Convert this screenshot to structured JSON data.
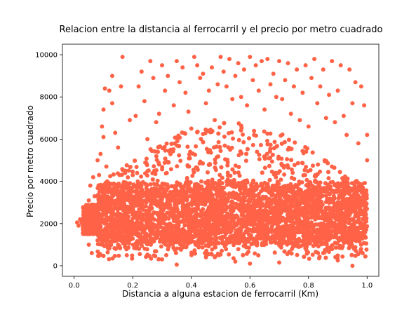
{
  "chart_data": {
    "type": "scatter",
    "title": "Relacion entre la distancia al ferrocarril y el precio por metro cuadrado",
    "xlabel": "Distancia a alguna estacion de ferrocarril (Km)",
    "ylabel": "Precio por metro cuadrado",
    "xlim": [
      -0.04,
      1.04
    ],
    "ylim": [
      -500,
      10500
    ],
    "xticks": [
      "0.0",
      "0.2",
      "0.4",
      "0.6",
      "0.8",
      "1.0"
    ],
    "xtick_values": [
      0.0,
      0.2,
      0.4,
      0.6,
      0.8,
      1.0
    ],
    "yticks": [
      "0",
      "2000",
      "4000",
      "6000",
      "8000",
      "10000"
    ],
    "ytick_values": [
      0,
      2000,
      4000,
      6000,
      8000,
      10000
    ],
    "grid": false,
    "legend": "none",
    "marker_color": "#ff6347",
    "series": [
      {
        "points": [
          [
            0.01,
            2050
          ],
          [
            0.015,
            1900
          ],
          [
            0.02,
            2200
          ],
          [
            0.025,
            2050
          ],
          [
            0.03,
            1800
          ],
          [
            0.035,
            2400
          ],
          [
            0.04,
            2600
          ],
          [
            0.045,
            1500
          ],
          [
            0.05,
            3100
          ],
          [
            0.05,
            1000
          ],
          [
            0.055,
            3800
          ],
          [
            0.06,
            2900
          ],
          [
            0.06,
            600
          ],
          [
            0.065,
            4200
          ],
          [
            0.07,
            3300
          ],
          [
            0.075,
            2100
          ],
          [
            0.08,
            5000
          ],
          [
            0.08,
            1200
          ],
          [
            0.085,
            4300
          ],
          [
            0.09,
            5300
          ],
          [
            0.095,
            6600
          ],
          [
            0.1,
            7400
          ],
          [
            0.1,
            6100
          ],
          [
            0.105,
            8400
          ],
          [
            0.11,
            4700
          ],
          [
            0.12,
            8300
          ],
          [
            0.13,
            7700
          ],
          [
            0.13,
            9000
          ],
          [
            0.14,
            6300
          ],
          [
            0.15,
            5600
          ],
          [
            0.16,
            8500
          ],
          [
            0.165,
            9900
          ],
          [
            0.17,
            3200
          ],
          [
            0.18,
            3900
          ],
          [
            0.19,
            6900
          ],
          [
            0.2,
            4300
          ],
          [
            0.21,
            7100
          ],
          [
            0.22,
            8500
          ],
          [
            0.23,
            9200
          ],
          [
            0.24,
            7800
          ],
          [
            0.25,
            6000
          ],
          [
            0.26,
            9700
          ],
          [
            0.27,
            8900
          ],
          [
            0.28,
            6800
          ],
          [
            0.29,
            7200
          ],
          [
            0.3,
            9500
          ],
          [
            0.31,
            8300
          ],
          [
            0.32,
            9000
          ],
          [
            0.33,
            5500
          ],
          [
            0.34,
            7600
          ],
          [
            0.35,
            9700
          ],
          [
            0.36,
            8700
          ],
          [
            0.37,
            9400
          ],
          [
            0.38,
            8200
          ],
          [
            0.39,
            7300
          ],
          [
            0.4,
            6500
          ],
          [
            0.41,
            9900
          ],
          [
            0.42,
            9500
          ],
          [
            0.43,
            8900
          ],
          [
            0.44,
            9100
          ],
          [
            0.45,
            7700
          ],
          [
            0.46,
            8300
          ],
          [
            0.47,
            9400
          ],
          [
            0.48,
            6900
          ],
          [
            0.49,
            8600
          ],
          [
            0.5,
            9900
          ],
          [
            0.51,
            9200
          ],
          [
            0.52,
            8500
          ],
          [
            0.53,
            9800
          ],
          [
            0.54,
            7900
          ],
          [
            0.55,
            9000
          ],
          [
            0.56,
            9600
          ],
          [
            0.57,
            8000
          ],
          [
            0.58,
            9300
          ],
          [
            0.59,
            7600
          ],
          [
            0.6,
            9900
          ],
          [
            0.61,
            8800
          ],
          [
            0.62,
            9500
          ],
          [
            0.63,
            8300
          ],
          [
            0.64,
            9700
          ],
          [
            0.65,
            7400
          ],
          [
            0.66,
            9800
          ],
          [
            0.67,
            8600
          ],
          [
            0.68,
            9100
          ],
          [
            0.69,
            8000
          ],
          [
            0.7,
            9700
          ],
          [
            0.71,
            7900
          ],
          [
            0.72,
            8800
          ],
          [
            0.73,
            9600
          ],
          [
            0.74,
            7200
          ],
          [
            0.75,
            8500
          ],
          [
            0.76,
            9300
          ],
          [
            0.77,
            6900
          ],
          [
            0.78,
            8200
          ],
          [
            0.79,
            9500
          ],
          [
            0.8,
            6600
          ],
          [
            0.81,
            8900
          ],
          [
            0.82,
            9800
          ],
          [
            0.83,
            7700
          ],
          [
            0.84,
            8500
          ],
          [
            0.85,
            9300
          ],
          [
            0.86,
            7000
          ],
          [
            0.87,
            8100
          ],
          [
            0.88,
            9700
          ],
          [
            0.89,
            6800
          ],
          [
            0.9,
            8300
          ],
          [
            0.91,
            9500
          ],
          [
            0.92,
            7100
          ],
          [
            0.93,
            6200
          ],
          [
            0.94,
            9300
          ],
          [
            0.95,
            7700
          ],
          [
            0.96,
            8700
          ],
          [
            0.97,
            5800
          ],
          [
            0.98,
            8500
          ],
          [
            0.99,
            7600
          ],
          [
            1.0,
            6200
          ],
          [
            1.0,
            5000
          ],
          [
            0.55,
            200
          ],
          [
            0.3,
            300
          ],
          [
            0.7,
            150
          ],
          [
            0.9,
            250
          ],
          [
            0.15,
            900
          ],
          [
            0.45,
            400
          ],
          [
            0.85,
            600
          ],
          [
            0.6,
            100
          ],
          [
            0.35,
            50
          ],
          [
            0.95,
            0
          ]
        ]
      }
    ]
  }
}
